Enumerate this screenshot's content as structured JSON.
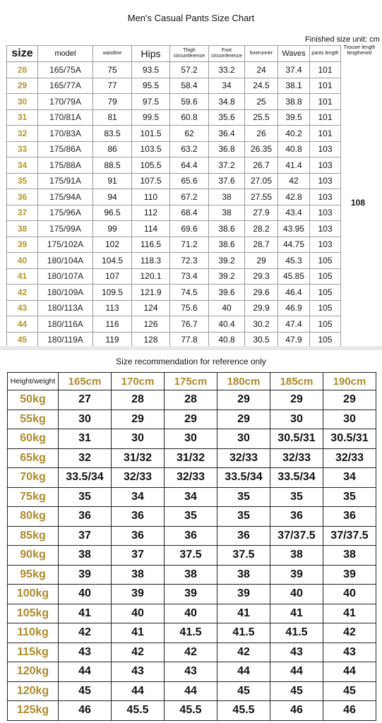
{
  "chart_title": "Men's Casual Pants Size Chart",
  "unit_note": "Finished size unit: cm",
  "headers": [
    "size",
    "model",
    "waistline",
    "Hips",
    "Thigh circumference",
    "Foot circumference",
    "forerunner",
    "Waves",
    "pants length",
    "Trouser length lengthened"
  ],
  "rows": [
    [
      "28",
      "165/75A",
      "75",
      "93.5",
      "57.2",
      "33.2",
      "24",
      "37.4",
      "101"
    ],
    [
      "29",
      "165/77A",
      "77",
      "95.5",
      "58.4",
      "34",
      "24.5",
      "38.1",
      "101"
    ],
    [
      "30",
      "170/79A",
      "79",
      "97.5",
      "59.6",
      "34.8",
      "25",
      "38.8",
      "101"
    ],
    [
      "31",
      "170/81A",
      "81",
      "99.5",
      "60.8",
      "35.6",
      "25.5",
      "39.5",
      "101"
    ],
    [
      "32",
      "170/83A",
      "83.5",
      "101.5",
      "62",
      "36.4",
      "26",
      "40.2",
      "101"
    ],
    [
      "33",
      "175/86A",
      "86",
      "103.5",
      "63.2",
      "36.8",
      "26.35",
      "40.8",
      "103"
    ],
    [
      "34",
      "175/88A",
      "88.5",
      "105.5",
      "64.4",
      "37.2",
      "26.7",
      "41.4",
      "103"
    ],
    [
      "35",
      "175/91A",
      "91",
      "107.5",
      "65.6",
      "37.6",
      "27.05",
      "42",
      "103"
    ],
    [
      "36",
      "175/94A",
      "94",
      "110",
      "67.2",
      "38",
      "27.55",
      "42.8",
      "103"
    ],
    [
      "37",
      "175/96A",
      "96.5",
      "112",
      "68.4",
      "38",
      "27.9",
      "43.4",
      "103"
    ],
    [
      "38",
      "175/99A",
      "99",
      "114",
      "69.6",
      "38.6",
      "28.2",
      "43.95",
      "103"
    ],
    [
      "39",
      "175/102A",
      "102",
      "116.5",
      "71.2",
      "38.6",
      "28.7",
      "44.75",
      "103"
    ],
    [
      "40",
      "180/104A",
      "104.5",
      "118.3",
      "72.3",
      "39.2",
      "29",
      "45.3",
      "105"
    ],
    [
      "41",
      "180/107A",
      "107",
      "120.1",
      "73.4",
      "39.2",
      "29.3",
      "45.85",
      "105"
    ],
    [
      "42",
      "180/109A",
      "109.5",
      "121.9",
      "74.5",
      "39.6",
      "29.6",
      "46.4",
      "105"
    ],
    [
      "43",
      "180/113A",
      "113",
      "124",
      "75.6",
      "40",
      "29.9",
      "46.9",
      "105"
    ],
    [
      "44",
      "180/116A",
      "116",
      "126",
      "76.7",
      "40.4",
      "30.2",
      "47.4",
      "105"
    ],
    [
      "45",
      "180/119A",
      "119",
      "128",
      "77.8",
      "40.8",
      "30.5",
      "47.9",
      "105"
    ]
  ],
  "lengthened_value": "108",
  "recommend_title": "Size recommendation for reference only",
  "recommend_corner": "Height/weight",
  "heights": [
    "165cm",
    "170cm",
    "175cm",
    "180cm",
    "185cm",
    "190cm"
  ],
  "recommend_rows": [
    [
      "50kg",
      "27",
      "28",
      "28",
      "29",
      "29",
      "29"
    ],
    [
      "55kg",
      "30",
      "29",
      "29",
      "29",
      "30",
      "30"
    ],
    [
      "60kg",
      "31",
      "30",
      "30",
      "30",
      "30.5/31",
      "30.5/31"
    ],
    [
      "65kg",
      "32",
      "31/32",
      "31/32",
      "32/33",
      "32/33",
      "32/33"
    ],
    [
      "70kg",
      "33.5/34",
      "32/33",
      "32/33",
      "33.5/34",
      "33.5/34",
      "34"
    ],
    [
      "75kg",
      "35",
      "34",
      "34",
      "35",
      "35",
      "35"
    ],
    [
      "80kg",
      "36",
      "36",
      "35",
      "35",
      "36",
      "36"
    ],
    [
      "85kg",
      "37",
      "36",
      "36",
      "36",
      "37/37.5",
      "37/37.5"
    ],
    [
      "90kg",
      "38",
      "37",
      "37.5",
      "37.5",
      "38",
      "38"
    ],
    [
      "95kg",
      "39",
      "38",
      "38",
      "38",
      "39",
      "39"
    ],
    [
      "100kg",
      "40",
      "39",
      "39",
      "39",
      "40",
      "40"
    ],
    [
      "105kg",
      "41",
      "40",
      "40",
      "41",
      "41",
      "41"
    ],
    [
      "110kg",
      "42",
      "41",
      "41.5",
      "41.5",
      "41.5",
      "42"
    ],
    [
      "115kg",
      "43",
      "42",
      "42",
      "42",
      "43",
      "43"
    ],
    [
      "120kg",
      "44",
      "43",
      "43",
      "44",
      "44",
      "44"
    ],
    [
      "120kg",
      "45",
      "44",
      "44",
      "45",
      "45",
      "45"
    ],
    [
      "125kg",
      "46",
      "45.5",
      "45.5",
      "45.5",
      "46",
      "46"
    ]
  ]
}
